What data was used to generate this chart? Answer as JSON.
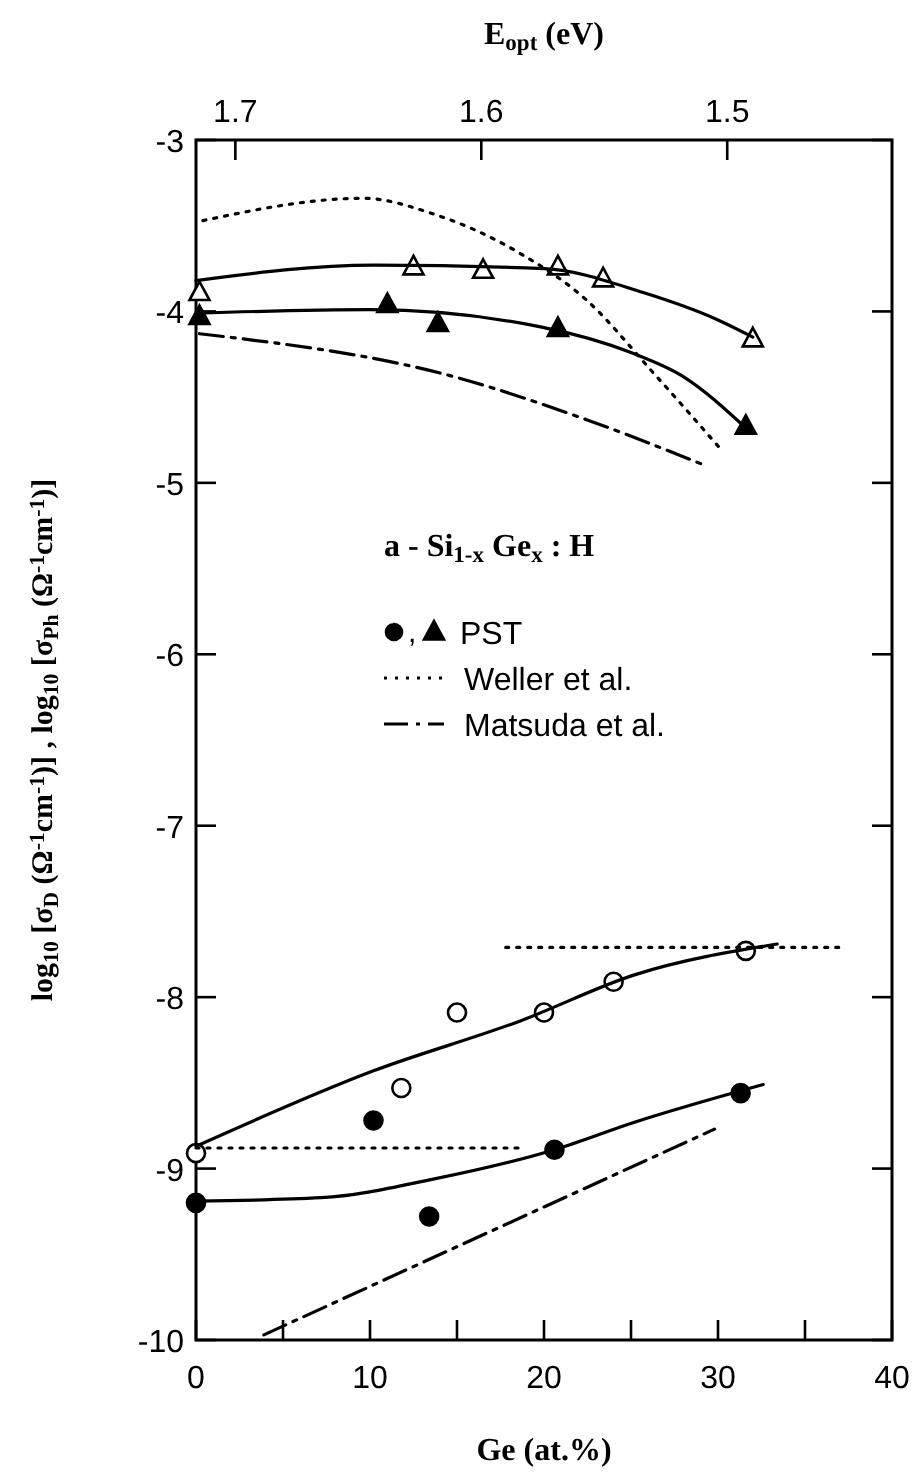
{
  "chart_data": {
    "type": "scatter",
    "xlabel": "Ge (at.%)",
    "ylabel": "log$_{10}$ [σ$_{D}$ (Ω$^{-1}$cm$^{-1}$)] , log$_{10}$ [σ$_{Ph}$ (Ω$^{-1}$cm$^{-1}$)]",
    "x2label": "E$_{opt}$ (eV)",
    "legend_title": "a - Si$_{1-x}$ Ge$_{x}$ : H",
    "legend": "right",
    "grid": false,
    "annotations": [
      ","
    ],
    "xlim": [
      0,
      40
    ],
    "xticks": [
      0,
      {
        "value": 5,
        "label": null
      },
      10,
      {
        "value": 15,
        "label": null
      },
      20,
      {
        "value": 25,
        "label": null
      },
      30,
      {
        "value": 35,
        "label": null
      },
      40
    ],
    "ylim": [
      -10,
      -3
    ],
    "yticks": [
      -10,
      -9,
      -8,
      -7,
      -6,
      -5,
      -4,
      -3
    ],
    "x2lim": [
      1.716,
      1.433
    ],
    "x2ticks": [
      1.7,
      1.6,
      1.5
    ],
    "series": [
      {
        "marker": "triangle",
        "color": "#ffffff",
        "x": [
          0.2,
          12.5,
          16.5,
          20.8,
          23.4,
          32.0
        ],
        "values": [
          -3.89,
          -3.74,
          -3.76,
          -3.74,
          -3.81,
          -4.16
        ]
      },
      {
        "marker": "triangle",
        "color": "#000000",
        "name": "PST",
        "x": [
          0.2,
          11.0,
          13.9,
          20.8,
          31.6
        ],
        "values": [
          -4.03,
          -3.96,
          -4.07,
          -4.1,
          -4.67
        ]
      },
      {
        "marker": "circle",
        "color": "#ffffff",
        "x": [
          0,
          11.8,
          15.0,
          20.0,
          24.0,
          31.6
        ],
        "values": [
          -8.91,
          -8.53,
          -8.09,
          -8.09,
          -7.91,
          -7.73
        ]
      },
      {
        "marker": "circle",
        "color": "#000000",
        "x": [
          0,
          10.2,
          13.4,
          20.6,
          31.3
        ],
        "values": [
          -9.2,
          -8.72,
          -9.28,
          -8.89,
          -8.56
        ]
      },
      {
        "type": "line",
        "marker": "none",
        "line_style": "solid",
        "color": "#000000",
        "x": [
          0,
          10.2,
          20,
          25.7,
          30,
          32
        ],
        "values": [
          -3.82,
          -3.73,
          -3.75,
          -3.89,
          -4.05,
          -4.15
        ]
      },
      {
        "type": "line",
        "marker": "none",
        "line_style": "solid",
        "color": "#000000",
        "x": [
          0,
          10,
          19.8,
          25,
          28,
          31.6
        ],
        "values": [
          -4.01,
          -3.99,
          -4.09,
          -4.24,
          -4.38,
          -4.68
        ]
      },
      {
        "type": "line",
        "marker": "none",
        "line_style": "solid",
        "color": "#000000",
        "x": [
          0,
          10.2,
          18.6,
          25.2,
          33.4
        ],
        "values": [
          -8.87,
          -8.43,
          -8.14,
          -7.87,
          -7.69
        ]
      },
      {
        "type": "line",
        "marker": "none",
        "line_style": "solid",
        "color": "#000000",
        "x": [
          0,
          7.2,
          13.7,
          20.6,
          25.2,
          32.6
        ],
        "values": [
          -9.19,
          -9.17,
          -9.06,
          -8.89,
          -8.73,
          -8.51
        ]
      },
      {
        "type": "line",
        "marker": "none",
        "line_style": "dotted",
        "color": "#000000",
        "name": "Weller et al.",
        "x": [
          0.4,
          9.6,
          13.6,
          18.6,
          22.4,
          26.3,
          30.3
        ],
        "values": [
          -3.47,
          -3.34,
          -3.43,
          -3.66,
          -3.93,
          -4.36,
          -4.82
        ]
      },
      {
        "type": "line",
        "marker": "none",
        "line_style": "dotted",
        "color": "#000000",
        "x": [
          0,
          18.6
        ],
        "values": [
          -8.88,
          -8.88
        ]
      },
      {
        "type": "line",
        "marker": "none",
        "line_style": "dotted",
        "color": "#000000",
        "x": [
          17.8,
          37.0
        ],
        "values": [
          -7.71,
          -7.71
        ]
      },
      {
        "type": "line",
        "marker": "none",
        "line_style": "dashdot",
        "color": "#000000",
        "name": "Matsuda et al.",
        "x": [
          0.2,
          14.8,
          22.4,
          29.3
        ],
        "values": [
          -4.13,
          -4.38,
          -4.63,
          -4.9
        ]
      },
      {
        "type": "line",
        "marker": "none",
        "line_style": "dashdot",
        "color": "#000000",
        "x": [
          3.9,
          29.8
        ],
        "values": [
          -9.97,
          -8.77
        ]
      }
    ]
  }
}
